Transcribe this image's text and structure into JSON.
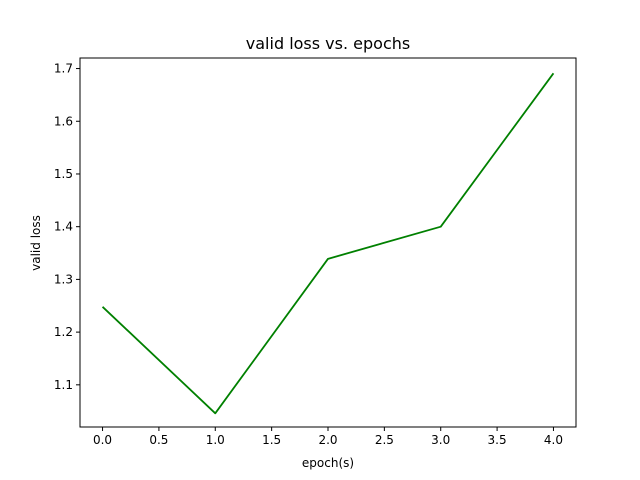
{
  "chart_data": {
    "type": "line",
    "title": "valid loss vs. epochs",
    "xlabel": "epoch(s)",
    "ylabel": "valid loss",
    "xlim": [
      -0.2,
      4.2
    ],
    "ylim": [
      1.02,
      1.72
    ],
    "xticks": [
      0.0,
      0.5,
      1.0,
      1.5,
      2.0,
      2.5,
      3.0,
      3.5,
      4.0
    ],
    "xtick_labels": [
      "0.0",
      "0.5",
      "1.0",
      "1.5",
      "2.0",
      "2.5",
      "3.0",
      "3.5",
      "4.0"
    ],
    "yticks": [
      1.1,
      1.2,
      1.3,
      1.4,
      1.5,
      1.6,
      1.7
    ],
    "ytick_labels": [
      "1.1",
      "1.2",
      "1.3",
      "1.4",
      "1.5",
      "1.6",
      "1.7"
    ],
    "grid": false,
    "series": [
      {
        "color": "#008000",
        "x": [
          0,
          1,
          2,
          3,
          4
        ],
        "y": [
          1.248,
          1.046,
          1.339,
          1.4,
          1.691
        ]
      }
    ]
  }
}
